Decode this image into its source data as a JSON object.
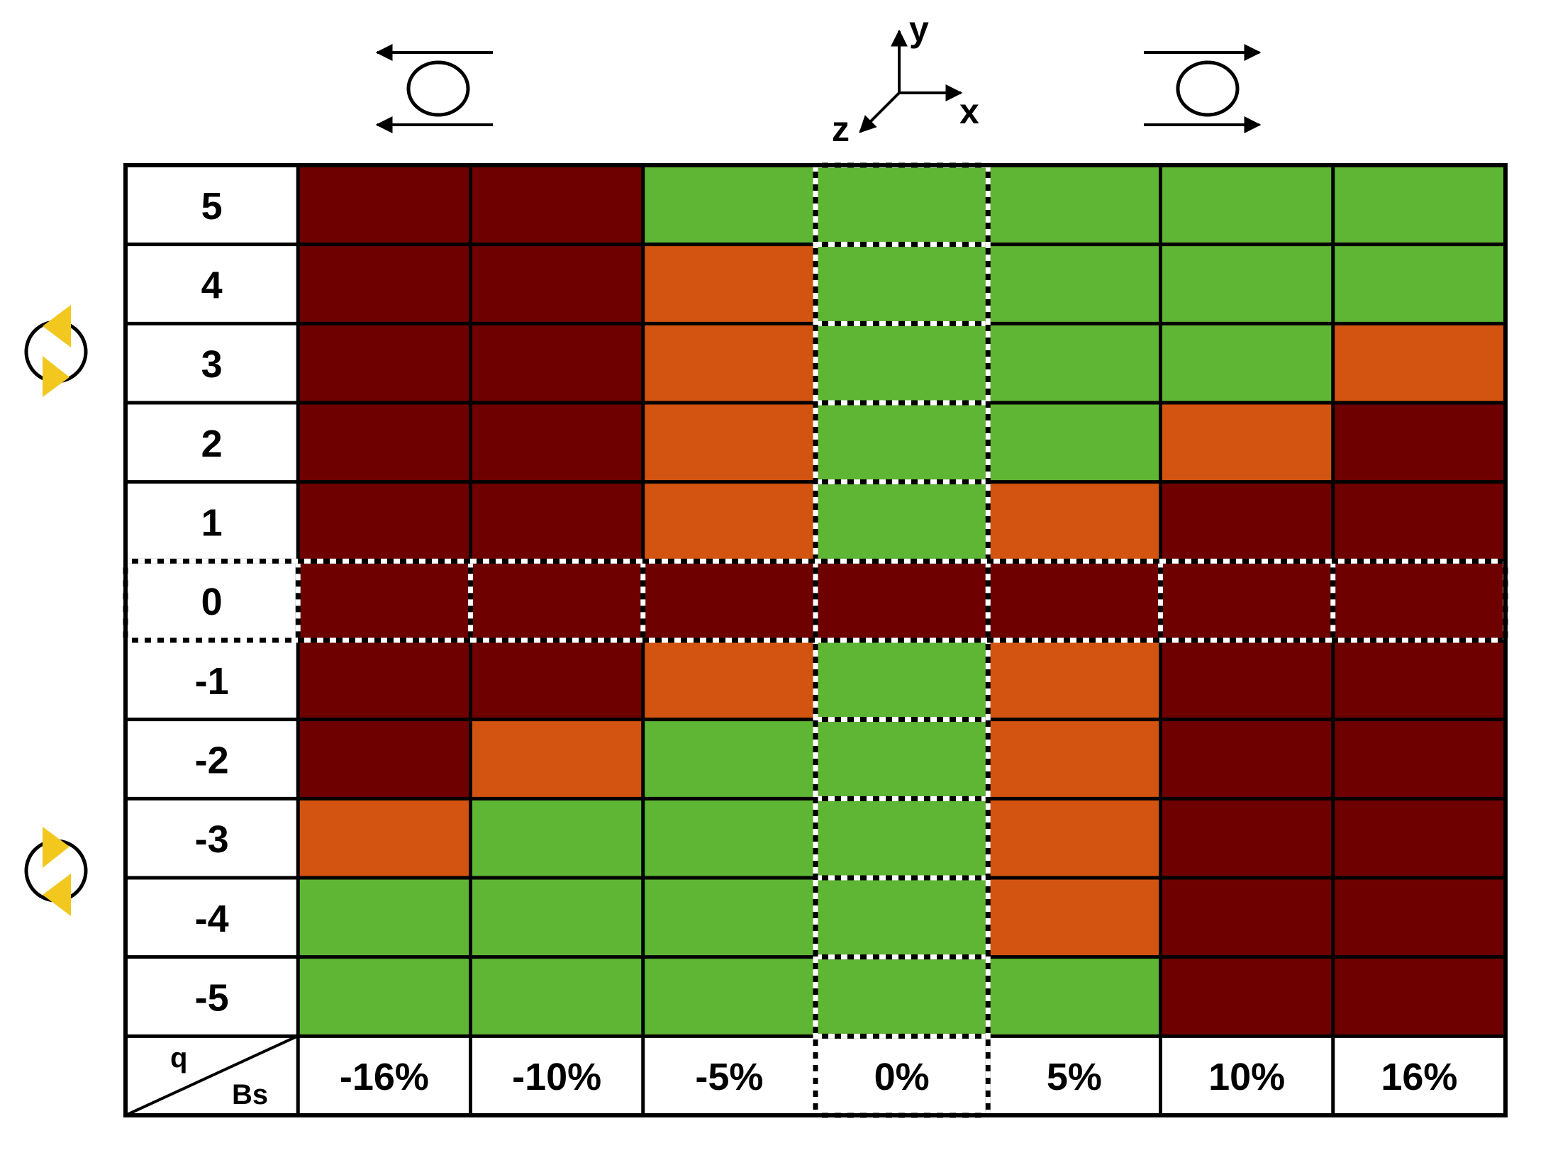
{
  "chart_data": {
    "type": "heatmap",
    "title": "",
    "xlabel": "Bs",
    "ylabel": "q",
    "corner_labels": {
      "row_header": "q",
      "col_header": "Bs"
    },
    "x_categories": [
      "-16%",
      "-10%",
      "-5%",
      "0%",
      "5%",
      "10%",
      "16%"
    ],
    "y_categories": [
      "5",
      "4",
      "3",
      "2",
      "1",
      "0",
      "-1",
      "-2",
      "-3",
      "-4",
      "-5"
    ],
    "legend_colors": {
      "red": "#6e0000",
      "orange": "#d35410",
      "green": "#5fb534"
    },
    "cells": [
      [
        "red",
        "red",
        "green",
        "green",
        "green",
        "green",
        "green"
      ],
      [
        "red",
        "red",
        "orange",
        "green",
        "green",
        "green",
        "green"
      ],
      [
        "red",
        "red",
        "orange",
        "green",
        "green",
        "green",
        "orange"
      ],
      [
        "red",
        "red",
        "orange",
        "green",
        "green",
        "orange",
        "red"
      ],
      [
        "red",
        "red",
        "orange",
        "green",
        "orange",
        "red",
        "red"
      ],
      [
        "red",
        "red",
        "red",
        "red",
        "red",
        "red",
        "red"
      ],
      [
        "red",
        "red",
        "orange",
        "green",
        "orange",
        "red",
        "red"
      ],
      [
        "red",
        "orange",
        "green",
        "green",
        "orange",
        "red",
        "red"
      ],
      [
        "orange",
        "green",
        "green",
        "green",
        "orange",
        "red",
        "red"
      ],
      [
        "green",
        "green",
        "green",
        "green",
        "orange",
        "red",
        "red"
      ],
      [
        "green",
        "green",
        "green",
        "green",
        "green",
        "red",
        "red"
      ]
    ],
    "highlighted_column": "0%",
    "highlighted_row": "0",
    "axes_glyph": {
      "x": "x",
      "y": "y",
      "z": "z"
    },
    "rotation_icon_color": "#f2c81f",
    "icons": [
      "flow-left-diagram-icon",
      "axes-xyz-icon",
      "flow-right-diagram-icon",
      "rotation-ccw-icon",
      "rotation-cw-icon"
    ]
  }
}
